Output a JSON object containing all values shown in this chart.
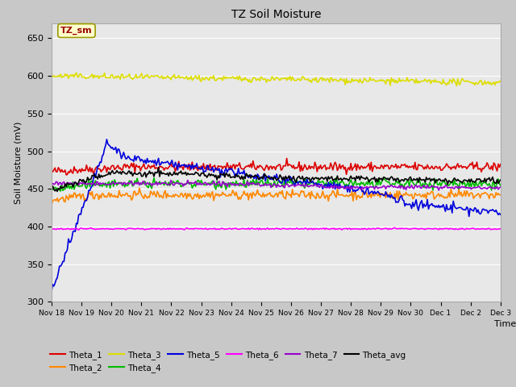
{
  "title": "TZ Soil Moisture",
  "xlabel": "Time",
  "ylabel": "Soil Moisture (mV)",
  "ylim": [
    300,
    670
  ],
  "yticks": [
    300,
    350,
    400,
    450,
    500,
    550,
    600,
    650
  ],
  "x_labels": [
    "Nov 18",
    "Nov 19",
    "Nov 20",
    "Nov 21",
    "Nov 22",
    "Nov 23",
    "Nov 24",
    "Nov 25",
    "Nov 26",
    "Nov 27",
    "Nov 28",
    "Nov 29",
    "Nov 30",
    "Dec 1",
    "Dec 2",
    "Dec 3"
  ],
  "n_points": 400,
  "fig_bg_color": "#c8c8c8",
  "plot_bg_color": "#e8e8e8",
  "legend_label": "TZ_sm",
  "legend_box_color": "#ffffcc",
  "legend_box_edge": "#999900",
  "legend_text_color": "#990000",
  "series": {
    "Theta_1": {
      "color": "#dd0000"
    },
    "Theta_2": {
      "color": "#ff8800"
    },
    "Theta_3": {
      "color": "#dddd00"
    },
    "Theta_4": {
      "color": "#00bb00"
    },
    "Theta_5": {
      "color": "#0000dd"
    },
    "Theta_6": {
      "color": "#ff00ff"
    },
    "Theta_7": {
      "color": "#9900cc"
    },
    "Theta_avg": {
      "color": "#000000"
    }
  },
  "legend_order": [
    "Theta_1",
    "Theta_2",
    "Theta_3",
    "Theta_4",
    "Theta_5",
    "Theta_6",
    "Theta_7",
    "Theta_avg"
  ]
}
